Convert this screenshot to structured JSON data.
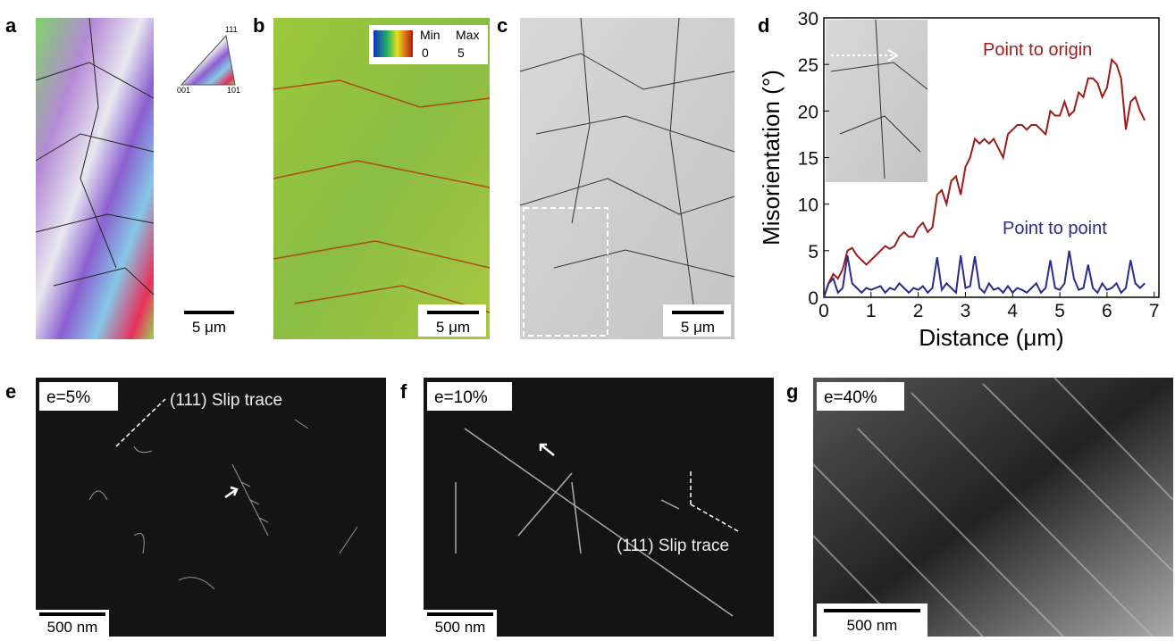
{
  "panels": {
    "a": {
      "label": "a",
      "scale_bar": "5 μm",
      "legend": {
        "top": "111",
        "left": "001",
        "right": "101"
      }
    },
    "b": {
      "label": "b",
      "scale_bar": "5 μm",
      "legend": {
        "min_title": "Min",
        "max_title": "Max",
        "min_value": "0",
        "max_value": "5"
      }
    },
    "c": {
      "label": "c",
      "scale_bar": "5 μm"
    },
    "d": {
      "label": "d"
    },
    "e": {
      "label": "e",
      "strain": "e=5%",
      "annotation": "(111) Slip trace",
      "scale_bar": "500 nm"
    },
    "f": {
      "label": "f",
      "strain": "e=10%",
      "annotation": "(111) Slip trace",
      "scale_bar": "500 nm"
    },
    "g": {
      "label": "g",
      "strain": "e=40%",
      "scale_bar": "500 nm"
    }
  },
  "chart_data": {
    "type": "line",
    "x_label": "Distance (μm)",
    "y_label": "Misorientation (°)",
    "xlim": [
      0,
      7.1
    ],
    "ylim": [
      0,
      30
    ],
    "xticks": [
      0,
      1,
      2,
      3,
      4,
      5,
      6,
      7
    ],
    "yticks": [
      0,
      5,
      10,
      15,
      20,
      25,
      30
    ],
    "x": [
      0,
      0.1,
      0.2,
      0.3,
      0.4,
      0.5,
      0.6,
      0.7,
      0.8,
      0.9,
      1,
      1.1,
      1.2,
      1.3,
      1.4,
      1.5,
      1.6,
      1.7,
      1.8,
      1.9,
      2,
      2.1,
      2.2,
      2.3,
      2.4,
      2.5,
      2.6,
      2.7,
      2.8,
      2.9,
      3,
      3.1,
      3.2,
      3.3,
      3.4,
      3.5,
      3.6,
      3.7,
      3.8,
      3.9,
      4,
      4.1,
      4.2,
      4.3,
      4.4,
      4.5,
      4.6,
      4.7,
      4.8,
      4.9,
      5,
      5.1,
      5.2,
      5.3,
      5.4,
      5.5,
      5.6,
      5.7,
      5.8,
      5.9,
      6,
      6.1,
      6.2,
      6.3,
      6.4,
      6.5,
      6.6,
      6.7,
      6.8
    ],
    "series": [
      {
        "name": "Point to origin",
        "color": "#9b1c1c",
        "values": [
          0,
          1.5,
          2.5,
          2,
          3,
          5,
          5.3,
          4.5,
          4,
          3.5,
          4,
          4.5,
          5,
          5.5,
          5.2,
          5.5,
          6.5,
          7,
          6.5,
          6.5,
          7.5,
          8,
          7,
          7.5,
          11,
          11.5,
          10,
          12.5,
          13,
          11,
          14,
          15,
          17,
          16.5,
          17,
          16.5,
          17,
          16,
          15,
          17.5,
          18,
          18.5,
          18.5,
          18,
          18.5,
          18.5,
          18,
          17.5,
          20,
          19.5,
          19.5,
          21,
          19.5,
          20,
          22,
          21.5,
          23.5,
          23.5,
          23,
          21.5,
          22.5,
          25.5,
          25,
          23.5,
          18,
          21,
          21.5,
          20,
          19
        ]
      },
      {
        "name": "Point to point",
        "color": "#2b2b8c",
        "values": [
          0,
          1.5,
          2,
          0.5,
          1,
          4.5,
          1.5,
          1,
          0.5,
          1,
          0.8,
          1,
          1.2,
          0.5,
          1,
          0.8,
          1.5,
          1,
          0.5,
          1,
          0.8,
          1.2,
          0.5,
          1,
          4.3,
          0.8,
          1.5,
          1,
          0.5,
          4.5,
          1,
          1.2,
          4.4,
          1,
          0.5,
          1.5,
          0.8,
          1,
          0.5,
          1.2,
          0.5,
          1,
          0.8,
          0.5,
          1,
          1.5,
          0.5,
          1,
          4,
          1,
          0.8,
          1.5,
          5,
          2,
          0.8,
          1,
          3.5,
          1,
          0.5,
          1.5,
          0.8,
          1,
          1.5,
          0.5,
          1,
          4,
          1.5,
          1,
          1.5
        ]
      }
    ]
  }
}
